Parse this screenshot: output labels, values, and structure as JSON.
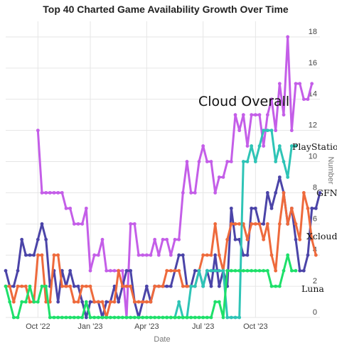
{
  "chart_data": {
    "type": "line",
    "title": "Top 40 Charted Game Availability Growth Over Time",
    "xlabel": "Date",
    "ylabel": "Number",
    "x_tick_labels": [
      "Oct '22",
      "Jan '23",
      "Apr '23",
      "Jul '23",
      "Oct '23"
    ],
    "y_ticks": [
      0,
      2,
      4,
      6,
      8,
      10,
      12,
      14,
      16,
      18
    ],
    "ylim": [
      0,
      19
    ],
    "x_range_weeks": [
      0,
      65
    ],
    "grid": true,
    "x_axis": "weekly snapshots, Sep 2022 – Jan 2024",
    "y_axis_side": "right",
    "annotations": [
      {
        "text": "Cloud Overall",
        "size": "large"
      },
      {
        "text": "PlayStation",
        "size": "normal"
      },
      {
        "text": "GFN",
        "size": "normal"
      },
      {
        "text": "Xcloud",
        "size": "normal"
      },
      {
        "text": "Luna",
        "size": "normal"
      }
    ],
    "series": [
      {
        "name": "Cloud Overall",
        "color": "#c45ee8",
        "start_index": 8,
        "values": [
          12,
          8,
          8,
          8,
          8,
          8,
          8,
          7,
          7,
          6,
          6,
          6,
          7,
          3,
          4,
          4,
          5,
          3,
          3,
          3,
          3,
          3,
          0,
          6,
          6,
          4,
          4,
          4,
          4,
          5,
          4,
          5,
          5,
          4,
          5,
          5,
          8,
          10,
          8,
          8,
          10,
          11,
          10,
          10,
          8,
          9,
          9,
          10,
          10,
          13,
          12,
          13,
          11,
          13,
          13,
          13,
          11,
          13,
          14,
          12,
          15,
          13,
          18,
          12,
          15,
          15,
          14,
          14,
          15
        ]
      },
      {
        "name": "GFN",
        "color": "#4b44a8",
        "start_index": 0,
        "values": [
          3,
          2,
          2,
          3,
          5,
          4,
          4,
          4,
          5,
          6,
          5,
          2,
          3,
          1,
          3,
          2,
          3,
          2,
          2,
          1,
          0,
          1,
          1,
          1,
          0,
          1,
          1,
          2,
          1,
          2,
          3,
          3,
          1,
          0,
          1,
          2,
          1,
          2,
          2,
          2,
          2,
          2,
          3,
          4,
          4,
          2,
          2,
          3,
          3,
          2,
          3,
          2,
          4,
          2,
          3,
          2,
          7,
          5,
          5,
          4,
          4,
          7,
          7,
          6,
          6,
          8,
          7,
          8,
          9,
          8,
          6,
          7,
          5,
          3,
          3,
          4,
          7,
          7,
          8
        ]
      },
      {
        "name": "Xcloud",
        "color": "#ee6a3c",
        "start_index": 0,
        "values": [
          2,
          2,
          1,
          2,
          2,
          2,
          1,
          1,
          4,
          4,
          1,
          1,
          4,
          4,
          2,
          2,
          2,
          1,
          1,
          2,
          2,
          2,
          1,
          1,
          1,
          0,
          1,
          1,
          3,
          2,
          2,
          2,
          1,
          1,
          1,
          1,
          1,
          2,
          2,
          2,
          3,
          3,
          3,
          3,
          2,
          2,
          2,
          2,
          3,
          4,
          4,
          4,
          6,
          4,
          3,
          5,
          6,
          6,
          6,
          6,
          5,
          6,
          6,
          6,
          5,
          6,
          4,
          3,
          6,
          8,
          6,
          7,
          6,
          5,
          8,
          7,
          5,
          4
        ]
      },
      {
        "name": "PlayStation",
        "color": "#2ec4b6",
        "start_index": 40,
        "values": [
          0,
          0,
          0,
          1,
          0,
          0,
          2,
          2,
          3,
          2,
          3,
          3,
          3,
          3,
          3,
          0,
          0,
          0,
          0,
          10,
          10,
          11,
          10,
          11,
          12,
          12,
          12,
          10,
          11,
          10,
          9,
          11,
          11
        ]
      },
      {
        "name": "Luna",
        "color": "#1ee06a",
        "start_index": 0,
        "values": [
          2,
          1,
          0,
          0,
          1,
          1,
          2,
          1,
          1,
          2,
          2,
          0,
          0,
          0,
          0,
          0,
          0,
          0,
          0,
          0,
          1,
          0,
          0,
          0,
          0,
          0,
          0,
          0,
          0,
          0,
          0,
          0,
          0,
          0,
          0,
          0,
          0,
          0,
          0,
          0,
          0,
          0,
          0,
          0,
          0,
          0,
          0,
          0,
          0,
          0,
          0,
          0,
          1,
          1,
          0,
          3,
          3,
          3,
          3,
          3,
          3,
          3,
          3,
          3,
          3,
          3,
          2,
          2,
          2,
          3,
          4,
          3,
          3
        ]
      }
    ]
  }
}
